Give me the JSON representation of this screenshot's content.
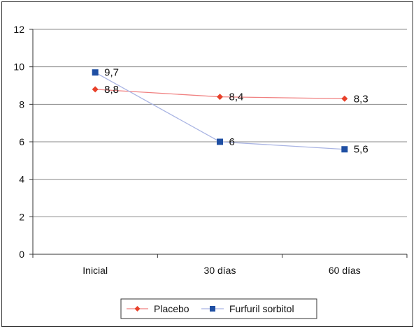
{
  "chart_data": {
    "type": "line",
    "categories": [
      "Inicial",
      "30 días",
      "60 días"
    ],
    "series": [
      {
        "name": "Placebo",
        "values": [
          8.8,
          8.4,
          8.3
        ],
        "labels": [
          "8,8",
          "8,4",
          "8,3"
        ],
        "color": "#f08080",
        "marker_color": "#e8412a",
        "marker": "diamond"
      },
      {
        "name": "Furfuril sorbitol",
        "values": [
          9.7,
          6,
          5.6
        ],
        "labels": [
          "9,7",
          "6",
          "5,6"
        ],
        "color": "#a9b4e3",
        "marker_color": "#1f4fa3",
        "marker": "square"
      }
    ],
    "ylim": [
      0,
      12
    ],
    "yticks": [
      0,
      2,
      4,
      6,
      8,
      10,
      12
    ],
    "ytick_labels": [
      "0",
      "2",
      "4",
      "6",
      "8",
      "10",
      "12"
    ],
    "grid": true,
    "legend_position": "bottom"
  }
}
